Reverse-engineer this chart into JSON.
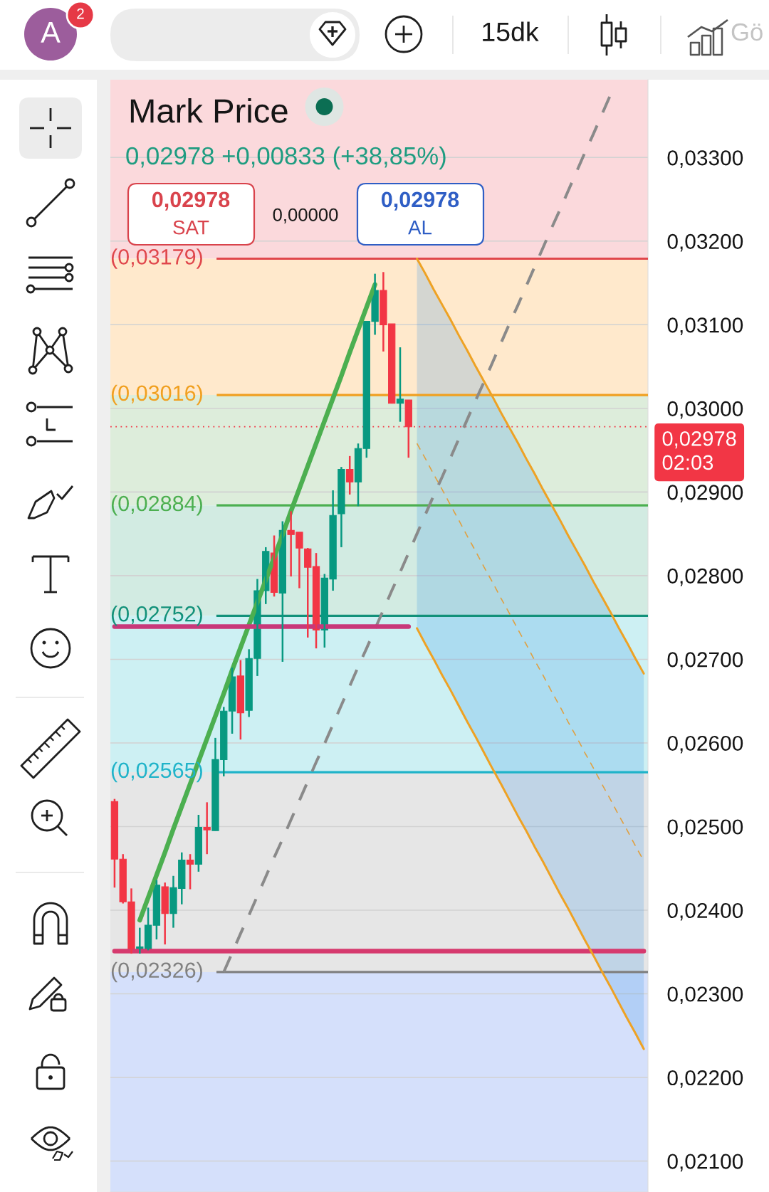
{
  "chart_data": {
    "type": "candlestick",
    "title": "Mark Price",
    "subtitle": "0,02978 +0,00833 (+38,85%)",
    "categories": [
      null,
      null,
      null,
      null,
      null,
      null,
      null,
      null,
      null,
      null,
      null,
      null,
      null,
      null,
      null,
      null,
      null,
      null,
      null,
      null,
      null,
      null,
      null,
      null,
      null,
      null,
      null,
      null,
      null,
      null,
      null,
      null,
      null,
      null,
      null,
      null,
      null,
      null,
      null,
      null,
      null,
      null,
      null,
      null,
      null,
      null,
      null,
      null,
      null,
      null,
      null,
      null,
      null,
      null,
      null,
      null,
      null,
      null,
      null,
      null,
      null,
      null,
      null,
      null
    ],
    "ohlc": [
      [
        0.0253,
        0.02533,
        0.02427,
        0.02461
      ],
      [
        0.02461,
        0.02467,
        0.02408,
        0.0241
      ],
      [
        0.0241,
        0.02426,
        0.02348,
        0.02353
      ],
      [
        0.02353,
        0.02379,
        0.02348,
        0.02356
      ],
      [
        0.02353,
        0.02403,
        0.02352,
        0.02382
      ],
      [
        0.02382,
        0.02436,
        0.02365,
        0.0243
      ],
      [
        0.02428,
        0.02433,
        0.02359,
        0.02396
      ],
      [
        0.02396,
        0.02441,
        0.02379,
        0.02427
      ],
      [
        0.02426,
        0.02469,
        0.02407,
        0.0246
      ],
      [
        0.0246,
        0.02467,
        0.02425,
        0.02455
      ],
      [
        0.02455,
        0.02514,
        0.02446,
        0.02499
      ],
      [
        0.02499,
        0.02529,
        0.02467,
        0.02496
      ],
      [
        0.02495,
        0.02606,
        0.02495,
        0.0258
      ],
      [
        0.0258,
        0.02643,
        0.0256,
        0.02638
      ],
      [
        0.02638,
        0.0269,
        0.02611,
        0.02679
      ],
      [
        0.0268,
        0.02699,
        0.02604,
        0.02636
      ],
      [
        0.02639,
        0.02712,
        0.02631,
        0.02701
      ],
      [
        0.02701,
        0.02796,
        0.0268,
        0.02782
      ],
      [
        0.02782,
        0.02834,
        0.02766,
        0.02829
      ],
      [
        0.02827,
        0.02848,
        0.02775,
        0.0278
      ],
      [
        0.02779,
        0.02865,
        0.02697,
        0.02854
      ],
      [
        0.02854,
        0.02877,
        0.02799,
        0.02849
      ],
      [
        0.02852,
        0.02852,
        0.02785,
        0.02833
      ],
      [
        0.02832,
        0.02833,
        0.02726,
        0.0281
      ],
      [
        0.02811,
        0.02827,
        0.02713,
        0.02735
      ],
      [
        0.02735,
        0.02802,
        0.02714,
        0.02797
      ],
      [
        0.02796,
        0.02902,
        0.02782,
        0.02872
      ],
      [
        0.02874,
        0.0293,
        0.02834,
        0.02927
      ],
      [
        0.02927,
        0.02943,
        0.02897,
        0.02912
      ],
      [
        0.02912,
        0.02958,
        0.02883,
        0.02952
      ],
      [
        0.02952,
        0.03104,
        0.02941,
        0.03104
      ],
      [
        0.03104,
        0.03161,
        0.03088,
        0.03141
      ],
      [
        0.03141,
        0.03163,
        0.03068,
        0.031
      ],
      [
        0.03101,
        0.03101,
        0.03006,
        0.03006
      ],
      [
        0.03006,
        0.03073,
        0.02984,
        0.03011
      ],
      [
        0.0301,
        0.0301,
        0.02941,
        0.02978
      ],
      null,
      null,
      null,
      null,
      null,
      null,
      null,
      null,
      null,
      null,
      null,
      null,
      null,
      null,
      null,
      null,
      null,
      null,
      null,
      null,
      null,
      null,
      null,
      null,
      null,
      null,
      null,
      null
    ],
    "colors": [
      "#f23645",
      "#f23645",
      "#f23645",
      "#089981",
      "#089981",
      "#089981",
      "#f23645",
      "#089981",
      "#089981",
      "#f23645",
      "#089981",
      "#f23645",
      "#089981",
      "#089981",
      "#089981",
      "#f23645",
      "#089981",
      "#089981",
      "#089981",
      "#f23645",
      "#089981",
      "#f23645",
      "#f23645",
      "#f23645",
      "#f23645",
      "#089981",
      "#089981",
      "#089981",
      "#f23645",
      "#089981",
      "#089981",
      "#089981",
      "#f23645",
      "#f23645",
      "#089981",
      "#f23645",
      null,
      null,
      null,
      null,
      null,
      null,
      null,
      null,
      null,
      null,
      null,
      null,
      null,
      null,
      null,
      null,
      null,
      null,
      null,
      null,
      null,
      null,
      null,
      null,
      null,
      null,
      null,
      null
    ],
    "ylim": [
      0.02063,
      0.03393
    ],
    "yticks": [
      {
        "value": 0.021,
        "label": "0,02100"
      },
      {
        "value": 0.022,
        "label": "0,02200"
      },
      {
        "value": 0.023,
        "label": "0,02300"
      },
      {
        "value": 0.024,
        "label": "0,02400"
      },
      {
        "value": 0.025,
        "label": "0,02500"
      },
      {
        "value": 0.026,
        "label": "0,02600"
      },
      {
        "value": 0.027,
        "label": "0,02700"
      },
      {
        "value": 0.028,
        "label": "0,02800"
      },
      {
        "value": 0.029,
        "label": "0,02900"
      },
      {
        "value": 0.03,
        "label": "0,03000"
      },
      {
        "value": 0.031,
        "label": "0,03100"
      },
      {
        "value": 0.032,
        "label": "0,03200"
      },
      {
        "value": 0.033,
        "label": "0,03300"
      }
    ],
    "tick_labels": "y",
    "grid": "y",
    "series": [
      {
        "type": "line",
        "color": "#4caf50",
        "values": [
          null,
          null,
          null,
          0.02388,
          0.02415,
          0.02442,
          0.02469,
          0.02497,
          0.02524,
          0.02551,
          0.02578,
          0.02605,
          0.02632,
          0.02659,
          0.02687,
          0.02714,
          0.02741,
          0.02768,
          0.02795,
          0.02822,
          0.02849,
          0.02877,
          0.02904,
          0.02931,
          0.02958,
          0.02985,
          0.03012,
          0.03039,
          0.03067,
          0.03094,
          0.03121,
          0.03148,
          null,
          null,
          null,
          null,
          null,
          null,
          null,
          null,
          null,
          null,
          null,
          null,
          null,
          null,
          null,
          null,
          null,
          null,
          null,
          null,
          null,
          null,
          null,
          null,
          null,
          null,
          null,
          null,
          null,
          null,
          null,
          null
        ]
      },
      {
        "type": "line",
        "color": "#8a8a8a",
        "line_style": "dashed",
        "values": [
          null,
          null,
          null,
          null,
          null,
          null,
          null,
          null,
          null,
          null,
          null,
          null,
          null,
          0.02326,
          0.02349,
          0.02372,
          0.02394,
          0.02417,
          0.0244,
          0.02463,
          0.02485,
          0.02508,
          0.02531,
          0.02554,
          0.02577,
          0.02599,
          0.02622,
          0.02645,
          0.02668,
          0.02691,
          0.02713,
          0.02736,
          0.02759,
          0.02782,
          0.02804,
          0.02827,
          0.0285,
          0.02873,
          0.02896,
          0.02918,
          0.02941,
          0.02964,
          0.02987,
          0.0301,
          0.03032,
          0.03055,
          0.03078,
          0.03101,
          0.03123,
          0.03146,
          0.03169,
          0.03192,
          0.03215,
          0.03237,
          0.0326,
          0.03283,
          0.03306,
          0.03328,
          0.03351,
          0.03374,
          null,
          null,
          null,
          null
        ]
      },
      {
        "type": "line",
        "color": "#c8387a",
        "values": [
          0.02739,
          0.02739,
          0.02739,
          0.02739,
          0.02739,
          0.02739,
          0.02739,
          0.02739,
          0.02739,
          0.02739,
          0.02739,
          0.02739,
          0.02739,
          0.02739,
          0.02739,
          0.02739,
          0.02739,
          0.02739,
          0.02739,
          0.02739,
          0.02739,
          0.02739,
          0.02739,
          0.02739,
          0.02739,
          0.02739,
          0.02739,
          0.02739,
          0.02739,
          0.02739,
          0.02739,
          0.02739,
          0.02739,
          0.02739,
          0.02739,
          0.02739,
          null,
          null,
          null,
          null,
          null,
          null,
          null,
          null,
          null,
          null,
          null,
          null,
          null,
          null,
          null,
          null,
          null,
          null,
          null,
          null,
          null,
          null,
          null,
          null,
          null,
          null,
          null,
          null
        ]
      },
      {
        "type": "line",
        "color": "#d63a6e",
        "values": [
          0.02351,
          0.02351,
          0.02351,
          0.02351,
          0.02351,
          0.02351,
          0.02351,
          0.02351,
          0.02351,
          0.02351,
          0.02351,
          0.02351,
          0.02351,
          0.02351,
          0.02351,
          0.02351,
          0.02351,
          0.02351,
          0.02351,
          0.02351,
          0.02351,
          0.02351,
          0.02351,
          0.02351,
          0.02351,
          0.02351,
          0.02351,
          0.02351,
          0.02351,
          0.02351,
          0.02351,
          0.02351,
          0.02351,
          0.02351,
          0.02351,
          0.02351,
          0.02351,
          0.02351,
          0.02351,
          0.02351,
          0.02351,
          0.02351,
          0.02351,
          0.02351,
          0.02351,
          0.02351,
          0.02351,
          0.02351,
          0.02351,
          0.02351,
          0.02351,
          0.02351,
          0.02351,
          0.02351,
          0.02351,
          0.02351,
          0.02351,
          0.02351,
          0.02351,
          0.02351,
          0.02351,
          0.02351,
          0.02351,
          0.02351
        ]
      },
      {
        "type": "line",
        "color": "#eea224",
        "values": [
          null,
          null,
          null,
          null,
          null,
          null,
          null,
          null,
          null,
          null,
          null,
          null,
          null,
          null,
          null,
          null,
          null,
          null,
          null,
          null,
          null,
          null,
          null,
          null,
          null,
          null,
          null,
          null,
          null,
          null,
          null,
          null,
          null,
          null,
          null,
          null,
          0.03179,
          0.03161,
          0.03142,
          0.03124,
          0.03106,
          0.03087,
          0.03069,
          0.0305,
          0.03032,
          0.03014,
          0.02995,
          0.02977,
          0.02959,
          0.0294,
          0.02922,
          0.02903,
          0.02885,
          0.02867,
          0.02848,
          0.0283,
          0.02812,
          0.02793,
          0.02775,
          0.02757,
          0.02738,
          0.0272,
          0.02701,
          0.02683
        ]
      },
      {
        "type": "line",
        "color": "#eea224",
        "values": [
          null,
          null,
          null,
          null,
          null,
          null,
          null,
          null,
          null,
          null,
          null,
          null,
          null,
          null,
          null,
          null,
          null,
          null,
          null,
          null,
          null,
          null,
          null,
          null,
          null,
          null,
          null,
          null,
          null,
          null,
          null,
          null,
          null,
          null,
          null,
          null,
          0.02737,
          0.02718,
          0.027,
          0.02681,
          0.02663,
          0.02644,
          0.02625,
          0.02607,
          0.02588,
          0.02569,
          0.02551,
          0.02532,
          0.02513,
          0.02495,
          0.02476,
          0.02458,
          0.02439,
          0.0242,
          0.02402,
          0.02383,
          0.02364,
          0.02346,
          0.02327,
          0.02309,
          0.0229,
          0.02271,
          0.02253,
          0.02234
        ]
      },
      {
        "type": "line",
        "color": "#e0a040",
        "line_style": "dashed",
        "values": [
          null,
          null,
          null,
          null,
          null,
          null,
          null,
          null,
          null,
          null,
          null,
          null,
          null,
          null,
          null,
          null,
          null,
          null,
          null,
          null,
          null,
          null,
          null,
          null,
          null,
          null,
          null,
          null,
          null,
          null,
          null,
          null,
          null,
          null,
          null,
          null,
          0.02958,
          0.0294,
          0.02921,
          0.02903,
          0.02884,
          0.02866,
          0.02847,
          0.02829,
          0.0281,
          0.02792,
          0.02773,
          0.02755,
          0.02736,
          0.02718,
          0.02699,
          0.02681,
          0.02662,
          0.02644,
          0.02625,
          0.02607,
          0.02588,
          0.0257,
          0.02551,
          0.02533,
          0.02514,
          0.02496,
          0.02477,
          0.02459
        ],
        "lower": [
          null,
          null,
          null,
          null,
          null,
          null,
          null,
          null,
          null,
          null,
          null,
          null,
          null,
          null,
          null,
          null,
          null,
          null,
          null,
          null,
          null,
          null,
          null,
          null,
          null,
          null,
          null,
          null,
          null,
          null,
          null,
          null,
          null,
          null,
          null,
          null,
          0.02737,
          0.02718,
          0.027,
          0.02681,
          0.02663,
          0.02644,
          0.02625,
          0.02607,
          0.02588,
          0.02569,
          0.02551,
          0.02532,
          0.02513,
          0.02495,
          0.02476,
          0.02458,
          0.02439,
          0.0242,
          0.02402,
          0.02383,
          0.02364,
          0.02346,
          0.02327,
          0.02309,
          0.0229,
          0.02271,
          0.02253,
          0.02234
        ],
        "upper": [
          null,
          null,
          null,
          null,
          null,
          null,
          null,
          null,
          null,
          null,
          null,
          null,
          null,
          null,
          null,
          null,
          null,
          null,
          null,
          null,
          null,
          null,
          null,
          null,
          null,
          null,
          null,
          null,
          null,
          null,
          null,
          null,
          null,
          null,
          null,
          null,
          0.03179,
          0.03161,
          0.03142,
          0.03124,
          0.03106,
          0.03087,
          0.03069,
          0.0305,
          0.03032,
          0.03014,
          0.02995,
          0.02977,
          0.02959,
          0.0294,
          0.02922,
          0.02903,
          0.02885,
          0.02867,
          0.02848,
          0.0283,
          0.02812,
          0.02793,
          0.02775,
          0.02757,
          0.02738,
          0.0272,
          0.02701,
          0.02683
        ]
      }
    ],
    "ref_lines": [
      {
        "axis": "y",
        "value": 0.03179,
        "label": "(0,03179)",
        "color": "#e0474c"
      },
      {
        "axis": "y",
        "value": 0.03016,
        "label": "(0,03016)",
        "color": "#f0a020"
      },
      {
        "axis": "y",
        "value": 0.02884,
        "label": "(0,02884)",
        "color": "#4caf50"
      },
      {
        "axis": "y",
        "value": 0.02752,
        "label": "(0,02752)",
        "color": "#12917a"
      },
      {
        "axis": "y",
        "value": 0.02565,
        "label": "(0,02565)",
        "color": "#1fb3c9"
      },
      {
        "axis": "y",
        "value": 0.02326,
        "label": "(0,02326)",
        "color": "#808080"
      },
      {
        "axis": "y",
        "value": 0.02978,
        "label": "0,02978\n02:03",
        "color": "#f23645",
        "line_style": "dotted"
      }
    ],
    "bands": [
      {
        "axis": "y",
        "from": 0.03179,
        "to": 0.03393,
        "color": "#fbd9dc"
      },
      {
        "axis": "y",
        "from": 0.03016,
        "to": 0.03179,
        "color": "#ffe9cc"
      },
      {
        "axis": "y",
        "from": 0.02884,
        "to": 0.03016,
        "color": "#ddeddb"
      },
      {
        "axis": "y",
        "from": 0.02752,
        "to": 0.02884,
        "color": "#d2ebe2"
      },
      {
        "axis": "y",
        "from": 0.02565,
        "to": 0.02752,
        "color": "#cdf0f3"
      },
      {
        "axis": "y",
        "from": 0.02326,
        "to": 0.02565,
        "color": "#e6e6e6"
      },
      {
        "axis": "y",
        "from": 0.02063,
        "to": 0.02326,
        "color": "#d5e0fb"
      }
    ],
    "annotations": [
      "0,02978",
      "SAT",
      "0,00000",
      "0,02978",
      "AL",
      "A",
      "2",
      "15dk",
      "Gö"
    ]
  }
}
